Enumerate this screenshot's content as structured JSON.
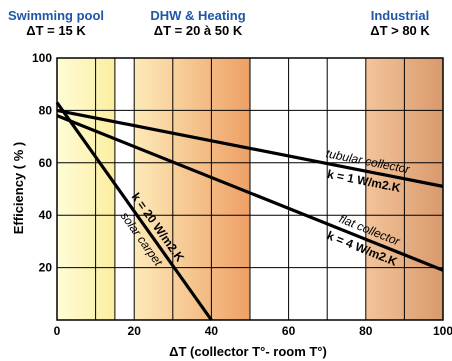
{
  "zones": [
    {
      "name": "Swimming pool",
      "delta": "ΔT = 15 K",
      "x_from": 0,
      "x_to": 15,
      "color_from": "#fffcd8",
      "color_to": "#fbeea0"
    },
    {
      "name": "DHW & Heating",
      "delta": "ΔT = 20 à 50 K",
      "x_from": 20,
      "x_to": 50,
      "color_from": "#fdeab8",
      "color_to": "#eea066"
    },
    {
      "name": "Industrial",
      "delta": "ΔT > 80 K",
      "x_from": 80,
      "x_to": 100,
      "color_from": "#f3c49a",
      "color_to": "#d99a6c"
    }
  ],
  "chart_data": {
    "type": "line",
    "title": "",
    "xlabel": "ΔT (collector T°- room T°)",
    "ylabel": "Efficiency ( % )",
    "xlim": [
      0,
      100
    ],
    "ylim": [
      0,
      100
    ],
    "x_ticks": [
      0,
      20,
      40,
      60,
      80,
      100
    ],
    "y_ticks": [
      20,
      40,
      60,
      80,
      100
    ],
    "grid": true,
    "series": [
      {
        "name": "tubular collector",
        "k_label": "k = 1 W/m2.K",
        "x": [
          0,
          100
        ],
        "y": [
          80,
          51
        ]
      },
      {
        "name": "flat collector",
        "k_label": "k = 4 W/m2.K",
        "x": [
          0,
          100
        ],
        "y": [
          78,
          19
        ]
      },
      {
        "name": "solar carpet",
        "k_label": "k = 20 W/m2.K",
        "x": [
          0,
          40
        ],
        "y": [
          83,
          0
        ]
      }
    ]
  }
}
